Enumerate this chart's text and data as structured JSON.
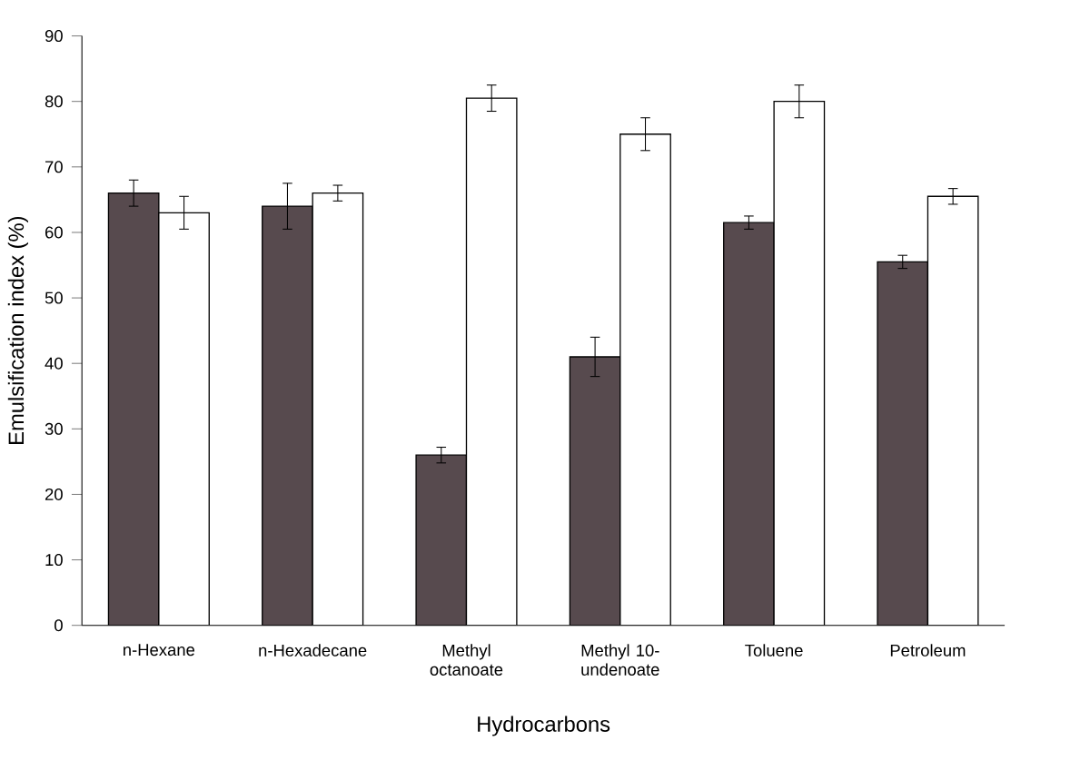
{
  "chart_data": {
    "type": "bar",
    "xlabel": "Hydrocarbons",
    "ylabel": "Emulsification index (%)",
    "categories": [
      "n-Hexane",
      "n-Hexadecane",
      "Methyl octanoate",
      "Methyl 10-undenoate",
      "Toluene",
      "Petroleum"
    ],
    "series": [
      {
        "color": "#574a4e",
        "values": [
          66,
          64,
          26,
          41,
          61.5,
          55.5
        ],
        "errors": [
          2,
          3.5,
          1.2,
          3,
          1,
          1
        ]
      },
      {
        "color": "#ffffff",
        "values": [
          63,
          66,
          80.5,
          75,
          80,
          65.5
        ],
        "errors": [
          2.5,
          1.2,
          2,
          2.5,
          2.5,
          1.2
        ]
      }
    ],
    "ylim": [
      0,
      90
    ],
    "yticks": [
      0,
      10,
      20,
      30,
      40,
      50,
      60,
      70,
      80,
      90
    ]
  }
}
